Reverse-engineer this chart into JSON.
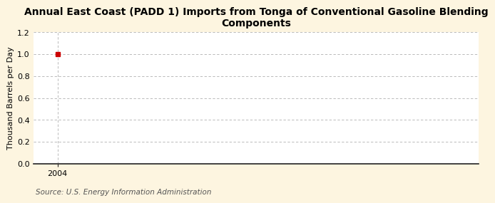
{
  "title": "Annual East Coast (PADD 1) Imports from Tonga of Conventional Gasoline Blending\nComponents",
  "ylabel": "Thousand Barrels per Day",
  "source_text": "Source: U.S. Energy Information Administration",
  "x_data": [
    2004
  ],
  "y_data": [
    1.0
  ],
  "marker_color": "#cc0000",
  "marker_style": "s",
  "marker_size": 4,
  "xlim": [
    2003.4,
    2014.5
  ],
  "ylim": [
    0.0,
    1.2
  ],
  "yticks": [
    0.0,
    0.2,
    0.4,
    0.6,
    0.8,
    1.0,
    1.2
  ],
  "xticks": [
    2004
  ],
  "grid_color": "#b0b0b0",
  "background_color": "#fdf5e0",
  "plot_bg_color": "#ffffff",
  "title_fontsize": 10,
  "label_fontsize": 8,
  "tick_fontsize": 8,
  "source_fontsize": 7.5
}
